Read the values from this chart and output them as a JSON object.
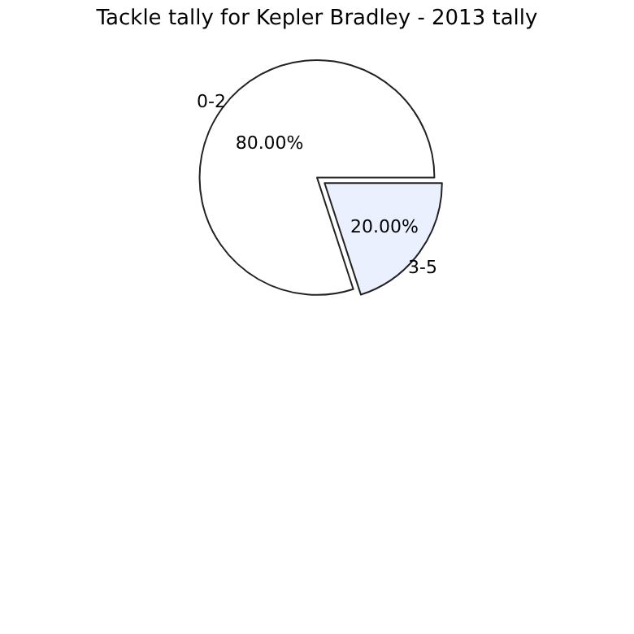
{
  "chart_data": {
    "type": "pie",
    "title": "Tackle tally for Kepler Bradley - 2013 tally",
    "categories": [
      "0-2",
      "3-5"
    ],
    "values": [
      80,
      20
    ],
    "colors": [
      "#ffffff",
      "#eaf0fe"
    ],
    "value_labels": [
      "80.00%",
      "20.00%"
    ],
    "legend": false
  }
}
